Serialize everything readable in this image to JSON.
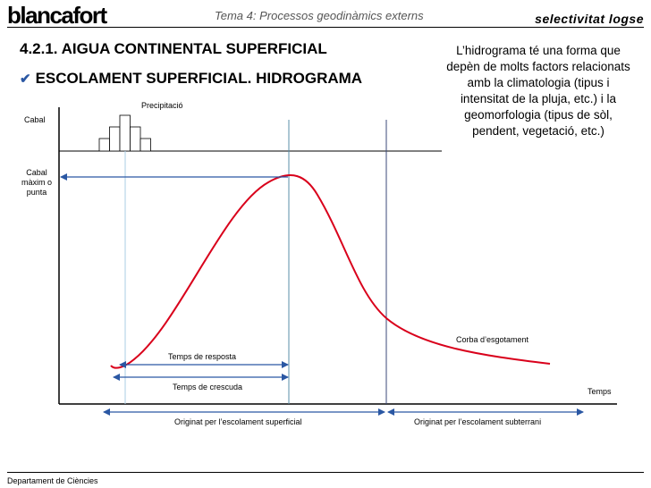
{
  "header": {
    "logo": "blancafort",
    "subtitle": "Tema 4: Processos geodinàmics externs",
    "brand": "selectivitat logse"
  },
  "title": "4.2.1. AIGUA CONTINENTAL SUPERFICIAL",
  "subtitle_check": "✔",
  "subtitle": "ESCOLAMENT SUPERFICIAL. HIDROGRAMA",
  "description": "L’hidrograma té una forma que depèn de molts factors relacionats amb la climatologia (tipus i intensitat de la pluja, etc.) i la geomorfologia (tipus de sòl, pendent, vegetació, etc.)",
  "diagram": {
    "label_precipitacio": "Precipitació",
    "label_cabal": "Cabal",
    "label_cabal_maxim": "Cabal màxim o punta",
    "label_temps_resposta": "Temps de resposta",
    "label_temps_crescuda": "Temps de crescuda",
    "label_corba": "Corba d’esgotament",
    "label_temps": "Temps",
    "label_origen_superficial": "Originat per l’escolament superficial",
    "label_origen_subterrani": "Originat per l’escolament subterrani",
    "colors": {
      "curve": "#d9001b",
      "arrow": "#2a57a3",
      "guide_peak": "#5a8fa8",
      "guide_start": "#a9cde6",
      "guide_end": "#3b4a7a"
    }
  },
  "footer": "Departament de Ciències"
}
